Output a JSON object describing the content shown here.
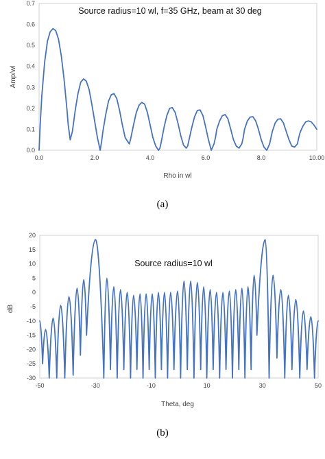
{
  "colors": {
    "series": "#4472C4"
  },
  "chart_data": [
    {
      "type": "line",
      "title": "Source radius=10 wl, f=35 GHz, beam at 30 deg",
      "xlabel": "Rho in wl",
      "ylabel": "Amp/wl",
      "xlim": [
        0,
        10
      ],
      "ylim": [
        0,
        0.7
      ],
      "xticks": [
        "0.0",
        "2.0",
        "4.0",
        "6.0",
        "8.0",
        "10.00"
      ],
      "yticks": [
        "0.0",
        "0.1",
        "0.2",
        "0.3",
        "0.4",
        "0.5",
        "0.6",
        "0.7"
      ],
      "grid": false,
      "caption": "(a)",
      "series": [
        {
          "x": [
            0,
            0.04,
            0.1,
            0.2,
            0.3,
            0.4,
            0.5,
            0.6,
            0.7,
            0.8,
            0.9,
            1.0,
            1.05,
            1.12,
            1.2,
            1.3,
            1.4,
            1.5,
            1.6,
            1.7,
            1.8,
            1.9,
            2.0,
            2.1,
            2.2,
            2.25,
            2.3,
            2.4,
            2.5,
            2.6,
            2.7,
            2.8,
            2.9,
            3.0,
            3.1,
            3.2,
            3.25,
            3.3,
            3.4,
            3.5,
            3.6,
            3.7,
            3.8,
            3.9,
            4.0,
            4.1,
            4.2,
            4.3,
            4.35,
            4.4,
            4.5,
            4.6,
            4.7,
            4.8,
            4.9,
            5.0,
            5.1,
            5.2,
            5.3,
            5.35,
            5.4,
            5.5,
            5.6,
            5.7,
            5.8,
            5.9,
            6.0,
            6.1,
            6.2,
            6.3,
            6.35,
            6.4,
            6.5,
            6.6,
            6.7,
            6.8,
            6.9,
            7.0,
            7.1,
            7.2,
            7.3,
            7.35,
            7.4,
            7.5,
            7.6,
            7.7,
            7.8,
            7.9,
            8.0,
            8.1,
            8.2,
            8.3,
            8.35,
            8.4,
            8.5,
            8.6,
            8.7,
            8.8,
            8.9,
            9.0,
            9.1,
            9.2,
            9.3,
            9.35,
            9.4,
            9.5,
            9.6,
            9.7,
            9.8,
            9.9,
            10.0
          ],
          "y": [
            0.0,
            0.12,
            0.26,
            0.42,
            0.52,
            0.565,
            0.58,
            0.57,
            0.53,
            0.45,
            0.34,
            0.2,
            0.12,
            0.05,
            0.09,
            0.19,
            0.27,
            0.325,
            0.34,
            0.33,
            0.29,
            0.22,
            0.14,
            0.06,
            0.0,
            0.04,
            0.09,
            0.17,
            0.235,
            0.265,
            0.27,
            0.245,
            0.19,
            0.12,
            0.06,
            0.04,
            0.03,
            0.055,
            0.12,
            0.18,
            0.215,
            0.228,
            0.22,
            0.18,
            0.12,
            0.06,
            0.02,
            0.0,
            0.01,
            0.04,
            0.11,
            0.165,
            0.2,
            0.203,
            0.18,
            0.13,
            0.07,
            0.025,
            0.01,
            0.02,
            0.05,
            0.11,
            0.16,
            0.19,
            0.192,
            0.165,
            0.11,
            0.05,
            0.0,
            0.03,
            0.06,
            0.1,
            0.14,
            0.165,
            0.17,
            0.15,
            0.1,
            0.05,
            0.02,
            0.01,
            0.03,
            0.06,
            0.1,
            0.14,
            0.158,
            0.16,
            0.14,
            0.1,
            0.05,
            0.015,
            0.0,
            0.03,
            0.06,
            0.09,
            0.13,
            0.148,
            0.15,
            0.13,
            0.09,
            0.05,
            0.02,
            0.015,
            0.03,
            0.06,
            0.085,
            0.115,
            0.135,
            0.14,
            0.135,
            0.12,
            0.1
          ]
        }
      ]
    },
    {
      "type": "line",
      "title": "Source radius=10 wl",
      "xlabel": "Theta, deg",
      "ylabel": "dB",
      "xlim": [
        -50,
        50
      ],
      "ylim": [
        -30,
        20
      ],
      "xticks": [
        "-50",
        "-30",
        "-10",
        "10",
        "30",
        "50"
      ],
      "yticks": [
        "20",
        "15",
        "10",
        "5",
        "0",
        "-5",
        "-10",
        "-15",
        "-20",
        "-25",
        "-30"
      ],
      "grid": false,
      "caption": "(b)",
      "lobe_peaks": [
        [
          -50,
          -10
        ],
        [
          -47.9,
          -13
        ],
        [
          -45.2,
          -9
        ],
        [
          -42.5,
          -4.5
        ],
        [
          -39.5,
          -1.5
        ],
        [
          -36.6,
          1.5
        ],
        [
          -34.2,
          4.5
        ],
        [
          -30,
          18.5
        ],
        [
          -25.9,
          5
        ],
        [
          -23.4,
          2
        ],
        [
          -21.0,
          1
        ],
        [
          -18.6,
          0
        ],
        [
          -16.3,
          -1
        ],
        [
          -14.0,
          -0.5
        ],
        [
          -11.8,
          -0.5
        ],
        [
          -9.6,
          -0.5
        ],
        [
          -7.4,
          0
        ],
        [
          -5.2,
          0
        ],
        [
          -3.0,
          0
        ],
        [
          -0.5,
          0.5
        ],
        [
          1.8,
          4
        ],
        [
          4.2,
          4
        ],
        [
          6.6,
          3.5
        ],
        [
          8.9,
          2
        ],
        [
          11.2,
          1
        ],
        [
          13.5,
          0
        ],
        [
          15.8,
          0
        ],
        [
          18.1,
          0.5
        ],
        [
          20.4,
          1
        ],
        [
          22.6,
          1.5
        ],
        [
          24.8,
          2
        ],
        [
          27.0,
          6
        ],
        [
          31.0,
          18.5
        ],
        [
          33.8,
          6
        ],
        [
          36.6,
          1
        ],
        [
          39.3,
          -1
        ],
        [
          42.0,
          -2.5
        ],
        [
          44.7,
          -6.5
        ],
        [
          47.4,
          -8.5
        ],
        [
          50,
          -10
        ]
      ],
      "nulls": [
        [
          -49.0,
          -25
        ],
        [
          -46.6,
          -30
        ],
        [
          -43.9,
          -30
        ],
        [
          -41.0,
          -30
        ],
        [
          -38.0,
          -29
        ],
        [
          -35.4,
          -22
        ],
        [
          -33.2,
          -15
        ],
        [
          -27.0,
          -30
        ],
        [
          -24.6,
          -27
        ],
        [
          -22.2,
          -30
        ],
        [
          -19.8,
          -27
        ],
        [
          -17.4,
          -30
        ],
        [
          -15.1,
          -27
        ],
        [
          -12.9,
          -30
        ],
        [
          -10.7,
          -27
        ],
        [
          -8.5,
          -30
        ],
        [
          -6.3,
          -27
        ],
        [
          -4.1,
          -30
        ],
        [
          -1.8,
          -27
        ],
        [
          0.6,
          -30
        ],
        [
          3.0,
          -27
        ],
        [
          5.4,
          -30
        ],
        [
          7.8,
          -27
        ],
        [
          10.0,
          -30
        ],
        [
          12.3,
          -27
        ],
        [
          14.6,
          -30
        ],
        [
          16.9,
          -27
        ],
        [
          19.2,
          -30
        ],
        [
          21.5,
          -27
        ],
        [
          23.7,
          -30
        ],
        [
          25.9,
          -27
        ],
        [
          28.0,
          -15
        ],
        [
          32.4,
          -30
        ],
        [
          35.2,
          -23
        ],
        [
          38.0,
          -30
        ],
        [
          40.6,
          -27
        ],
        [
          43.4,
          -30
        ],
        [
          46.0,
          -27
        ],
        [
          48.7,
          -30
        ]
      ]
    }
  ]
}
